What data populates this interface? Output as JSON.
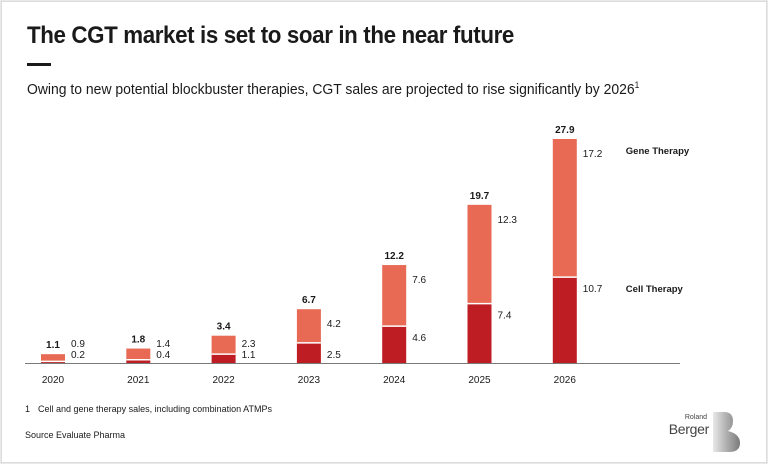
{
  "header": {
    "title": "The CGT market is set to soar in the near future",
    "subtitle": "Owing to new potential blockbuster therapies, CGT sales are projected to rise significantly by 2026",
    "subtitle_footnote_ref": "1"
  },
  "chart_data": {
    "type": "bar",
    "stacked": true,
    "title": "",
    "xlabel": "",
    "ylabel": "",
    "categories": [
      "2020",
      "2021",
      "2022",
      "2023",
      "2024",
      "2025",
      "2026"
    ],
    "series": [
      {
        "name": "Cell Therapy",
        "color": "#be1e23",
        "values": [
          0.2,
          0.4,
          1.1,
          2.5,
          4.6,
          7.4,
          10.7
        ],
        "labels": [
          "0.2",
          "0.4",
          "1.1",
          "2.5",
          "4.6",
          "7.4",
          "10.7"
        ]
      },
      {
        "name": "Gene Therapy",
        "color": "#e86a55",
        "values": [
          0.9,
          1.4,
          2.3,
          4.2,
          7.6,
          12.3,
          17.2
        ],
        "labels": [
          "0.9",
          "1.4",
          "2.3",
          "4.2",
          "7.6",
          "12.3",
          "17.2"
        ]
      }
    ],
    "totals": [
      1.1,
      1.8,
      3.4,
      6.7,
      12.2,
      19.7,
      27.9
    ],
    "total_labels": [
      "1.1",
      "1.8",
      "3.4",
      "6.7",
      "12.2",
      "19.7",
      "27.9"
    ],
    "ylim": [
      0,
      27.9
    ],
    "grid": false,
    "legend": "right, inline with last bar"
  },
  "footer": {
    "footnote_number": "1",
    "footnote_text": "Cell and gene therapy sales, including combination ATMPs",
    "source": "Source Evaluate Pharma",
    "logo_top": "Roland",
    "logo_bottom": "Berger"
  }
}
